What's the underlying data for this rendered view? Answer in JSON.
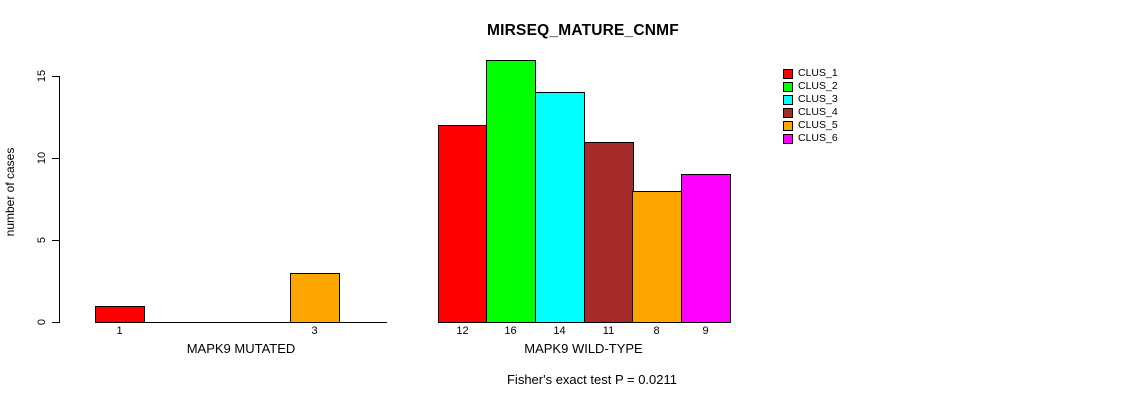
{
  "chart_data": {
    "type": "bar",
    "title": "MIRSEQ_MATURE_CNMF",
    "ylabel": "number of cases",
    "xlabel": "",
    "ylim": [
      0,
      16
    ],
    "yticks": [
      0,
      5,
      10,
      15
    ],
    "grid": false,
    "categories": [
      "CLUS_1",
      "CLUS_2",
      "CLUS_3",
      "CLUS_4",
      "CLUS_5",
      "CLUS_6"
    ],
    "legend": {
      "position": "top-right",
      "items": [
        {
          "label": "CLUS_1",
          "color": "#FF0000"
        },
        {
          "label": "CLUS_2",
          "color": "#00FF00"
        },
        {
          "label": "CLUS_3",
          "color": "#00FFFF"
        },
        {
          "label": "CLUS_4",
          "color": "#A52A2A"
        },
        {
          "label": "CLUS_5",
          "color": "#FFA500"
        },
        {
          "label": "CLUS_6",
          "color": "#FF00FF"
        }
      ]
    },
    "groups": [
      {
        "label": "MAPK9 MUTATED",
        "values": [
          1,
          0,
          0,
          0,
          3,
          0
        ],
        "bar_labels": [
          "1",
          "",
          "",
          "",
          "3",
          ""
        ]
      },
      {
        "label": "MAPK9 WILD-TYPE",
        "values": [
          12,
          16,
          14,
          11,
          8,
          9
        ],
        "bar_labels": [
          "12",
          "16",
          "14",
          "11",
          "8",
          "9"
        ]
      }
    ],
    "annotation": "Fisher's exact test P = 0.0211"
  }
}
